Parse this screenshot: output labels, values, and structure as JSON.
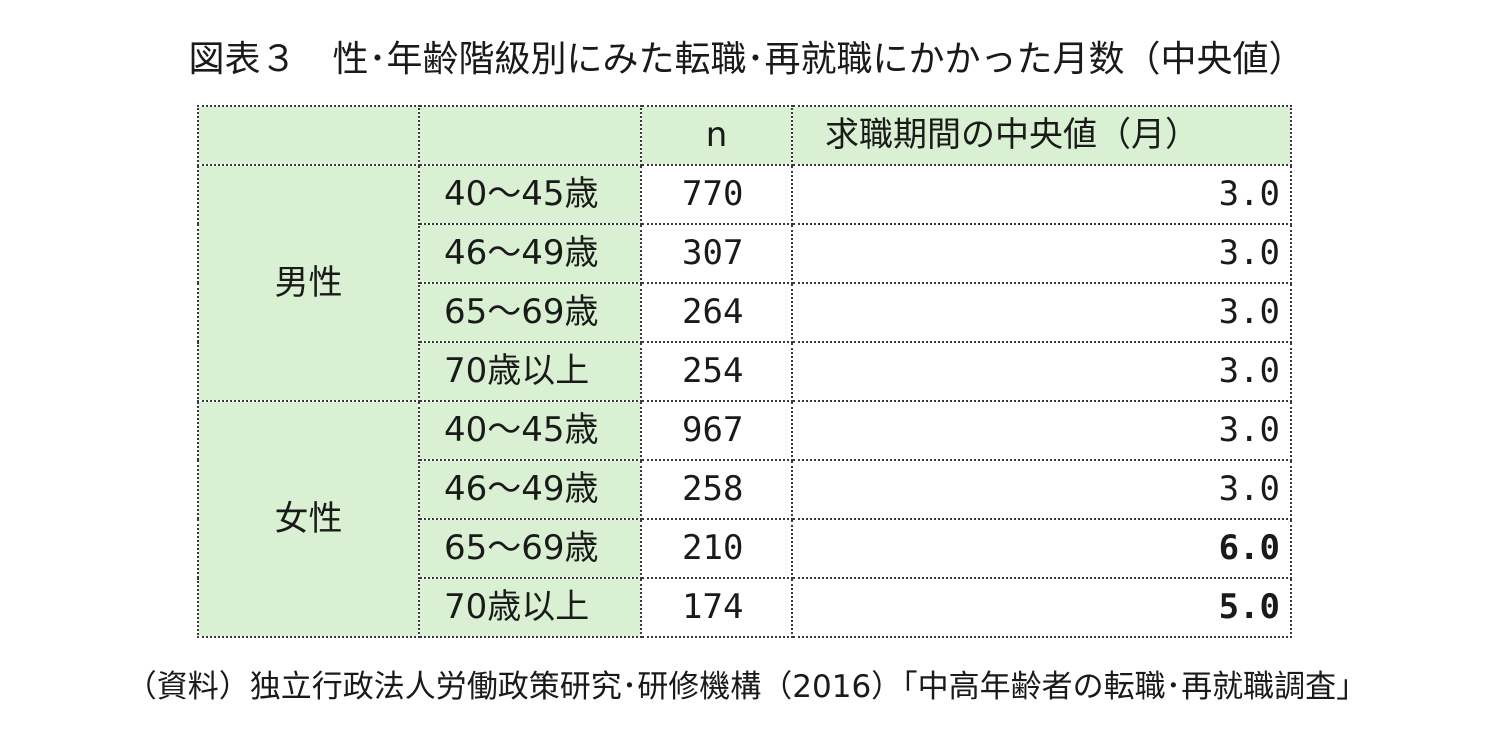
{
  "title": "図表３　性･年齢階級別にみた転職･再就職にかかった月数（中央値）",
  "table": {
    "headers": {
      "n": "n",
      "median": "求職期間の中央値（月）"
    },
    "groups": [
      {
        "sex": "男性",
        "rows": [
          {
            "age": "40～45歳",
            "n": "770",
            "median": "3.0",
            "bold": false
          },
          {
            "age": "46～49歳",
            "n": "307",
            "median": "3.0",
            "bold": false
          },
          {
            "age": "65～69歳",
            "n": "264",
            "median": "3.0",
            "bold": false
          },
          {
            "age": "70歳以上",
            "n": "254",
            "median": "3.0",
            "bold": false
          }
        ]
      },
      {
        "sex": "女性",
        "rows": [
          {
            "age": "40～45歳",
            "n": "967",
            "median": "3.0",
            "bold": false
          },
          {
            "age": "46～49歳",
            "n": "258",
            "median": "3.0",
            "bold": false
          },
          {
            "age": "65～69歳",
            "n": "210",
            "median": "6.0",
            "bold": true
          },
          {
            "age": "70歳以上",
            "n": "174",
            "median": "5.0",
            "bold": true
          }
        ]
      }
    ]
  },
  "source": "（資料）独立行政法人労働政策研究･研修機構（2016）「中高年齢者の転職･再就職調査」",
  "colors": {
    "header_fill": "#d9f0d2",
    "border": "#3a3a3a"
  }
}
